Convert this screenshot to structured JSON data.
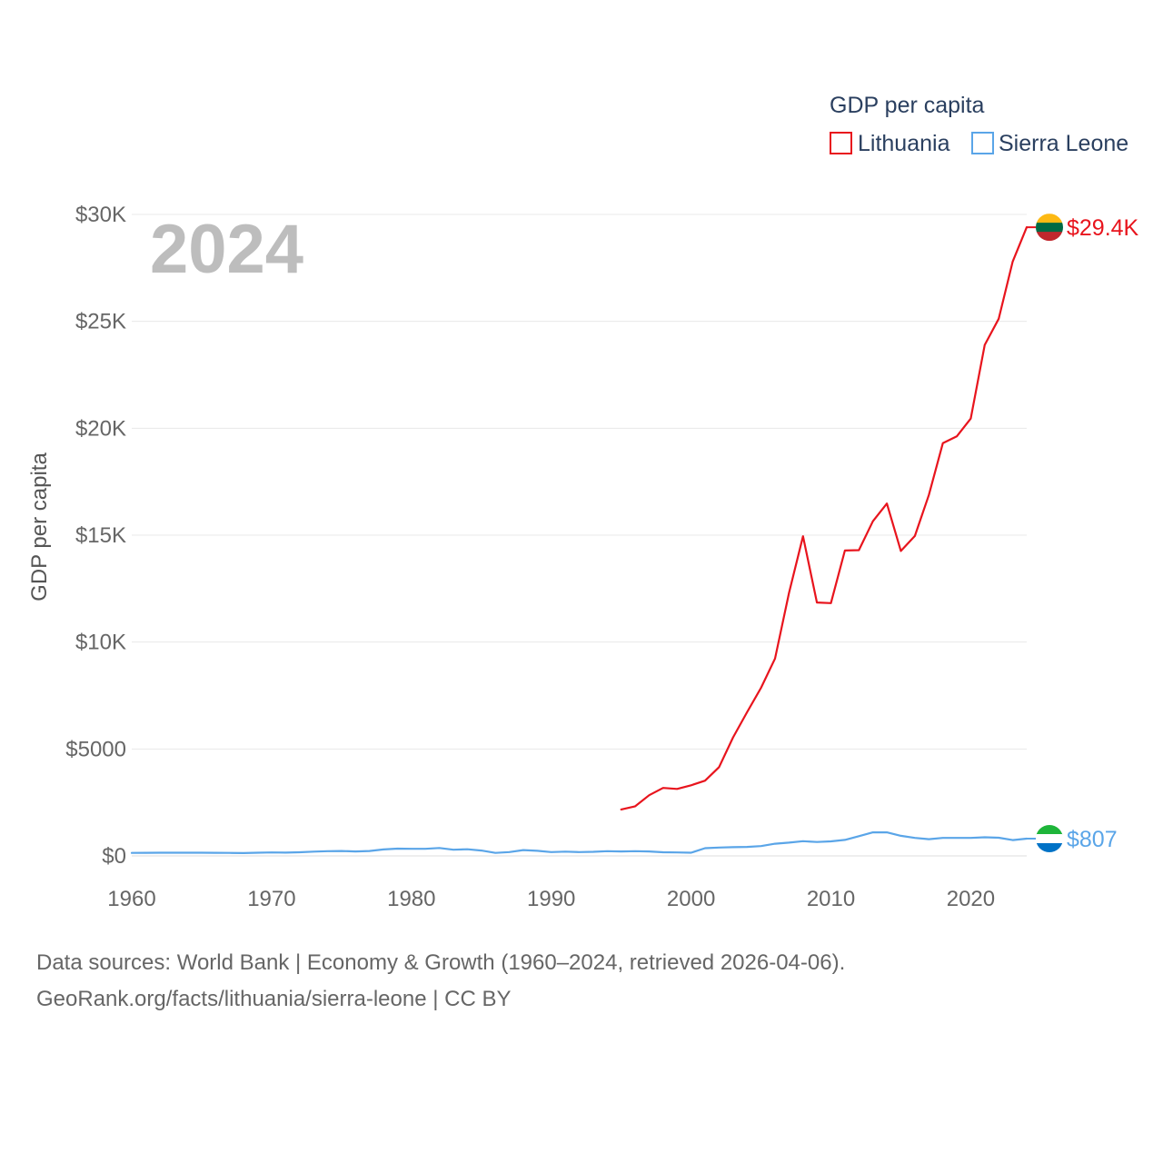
{
  "chart_data": {
    "type": "line",
    "title": "GDP per capita",
    "ylabel": "GDP per capita",
    "xlabel": "",
    "current_year": "2024",
    "xlim": [
      1960,
      2024
    ],
    "ylim": [
      0,
      30000
    ],
    "x_ticks": [
      1960,
      1970,
      1980,
      1990,
      2000,
      2010,
      2020
    ],
    "x_tick_labels": [
      "1960",
      "1970",
      "1980",
      "1990",
      "2000",
      "2010",
      "2020"
    ],
    "y_ticks": [
      0,
      5000,
      10000,
      15000,
      20000,
      25000,
      30000
    ],
    "y_tick_labels": [
      "$0",
      "$5000",
      "$10K",
      "$15K",
      "$20K",
      "$25K",
      "$30K"
    ],
    "grid": true,
    "legend_position": "top-right",
    "series": [
      {
        "name": "Lithuania",
        "color": "#e8141d",
        "end_label": "$29.4K",
        "x": [
          1995,
          1996,
          1997,
          1998,
          1999,
          2000,
          2001,
          2002,
          2003,
          2004,
          2005,
          2006,
          2007,
          2008,
          2009,
          2010,
          2011,
          2012,
          2013,
          2014,
          2015,
          2016,
          2017,
          2018,
          2019,
          2020,
          2021,
          2022,
          2023,
          2024
        ],
        "values": [
          2170,
          2320,
          2840,
          3180,
          3130,
          3300,
          3520,
          4150,
          5540,
          6720,
          7860,
          9230,
          12300,
          14950,
          11850,
          11820,
          14280,
          14300,
          15650,
          16480,
          14260,
          14960,
          16880,
          19300,
          19620,
          20450,
          23900,
          25120,
          27800,
          29400
        ]
      },
      {
        "name": "Sierra Leone",
        "color": "#5aa5e8",
        "end_label": "$807",
        "x": [
          1960,
          1961,
          1962,
          1963,
          1964,
          1965,
          1966,
          1967,
          1968,
          1969,
          1970,
          1971,
          1972,
          1973,
          1974,
          1975,
          1976,
          1977,
          1978,
          1979,
          1980,
          1981,
          1982,
          1983,
          1984,
          1985,
          1986,
          1987,
          1988,
          1989,
          1990,
          1991,
          1992,
          1993,
          1994,
          1995,
          1996,
          1997,
          1998,
          1999,
          2000,
          2001,
          2002,
          2003,
          2004,
          2005,
          2006,
          2007,
          2008,
          2009,
          2010,
          2011,
          2012,
          2013,
          2014,
          2015,
          2016,
          2017,
          2018,
          2019,
          2020,
          2021,
          2022,
          2023,
          2024
        ],
        "values": [
          140,
          145,
          150,
          150,
          150,
          148,
          145,
          140,
          130,
          150,
          160,
          155,
          170,
          200,
          220,
          230,
          210,
          230,
          300,
          340,
          330,
          330,
          370,
          290,
          310,
          250,
          140,
          180,
          270,
          240,
          180,
          200,
          180,
          190,
          220,
          210,
          220,
          210,
          170,
          160,
          150,
          360,
          390,
          410,
          420,
          460,
          570,
          620,
          690,
          650,
          680,
          750,
          920,
          1100,
          1100,
          940,
          840,
          780,
          840,
          840,
          840,
          870,
          850,
          740,
          807
        ]
      }
    ]
  },
  "footer": {
    "line1": "Data sources: World Bank | Economy & Growth (1960–2024, retrieved 2026-04-06).",
    "line2": "GeoRank.org/facts/lithuania/sierra-leone | CC BY"
  },
  "flags": {
    "lithuania_colors": [
      "#fdb913",
      "#006a44",
      "#c1272d"
    ],
    "sierra_leone_colors": [
      "#1eb53a",
      "#ffffff",
      "#0072c6"
    ]
  }
}
